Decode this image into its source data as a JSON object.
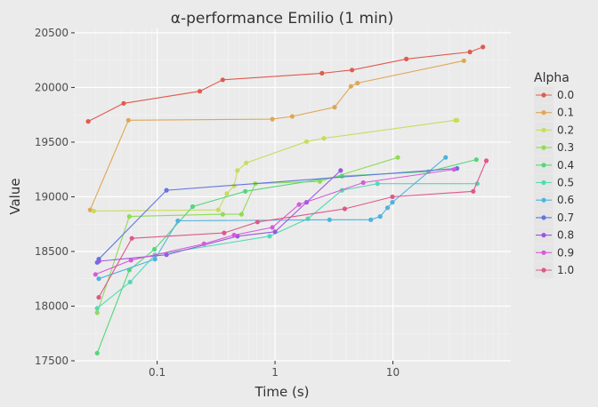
{
  "chart_data": {
    "type": "line",
    "title": "α-performance Emilio (1 min)",
    "xlabel": "Time (s)",
    "ylabel": "Value",
    "x_scale": "log",
    "xlim": [
      0.02,
      100
    ],
    "ylim": [
      17500,
      20540
    ],
    "x_ticks": [
      {
        "value": 0.1,
        "label": "0.1"
      },
      {
        "value": 1,
        "label": "1"
      },
      {
        "value": 10,
        "label": "10"
      }
    ],
    "y_ticks": [
      {
        "value": 17500,
        "label": "17500"
      },
      {
        "value": 18000,
        "label": "18000"
      },
      {
        "value": 18500,
        "label": "18500"
      },
      {
        "value": 19000,
        "label": "19000"
      },
      {
        "value": 19500,
        "label": "19500"
      },
      {
        "value": 20000,
        "label": "20000"
      },
      {
        "value": 20500,
        "label": "20500"
      }
    ],
    "grid": true,
    "legend": {
      "title": "Alpha",
      "position": "right"
    },
    "series": [
      {
        "name": "0.0",
        "color": "#e05a4e",
        "points": [
          [
            0.026,
            19690
          ],
          [
            0.052,
            19855
          ],
          [
            0.23,
            19965
          ],
          [
            0.36,
            20070
          ],
          [
            2.5,
            20130
          ],
          [
            4.5,
            20160
          ],
          [
            13,
            20260
          ],
          [
            45,
            20325
          ],
          [
            58,
            20370
          ]
        ]
      },
      {
        "name": "0.1",
        "color": "#dea755",
        "points": [
          [
            0.027,
            18880
          ],
          [
            0.057,
            19700
          ],
          [
            0.95,
            19710
          ],
          [
            1.4,
            19735
          ],
          [
            3.2,
            19820
          ],
          [
            4.4,
            20010
          ],
          [
            5.0,
            20040
          ],
          [
            40,
            20245
          ]
        ]
      },
      {
        "name": "0.2",
        "color": "#c8dc5c",
        "points": [
          [
            0.029,
            18870
          ],
          [
            0.33,
            18880
          ],
          [
            0.39,
            19030
          ],
          [
            0.45,
            19100
          ],
          [
            0.48,
            19240
          ],
          [
            0.57,
            19310
          ],
          [
            1.85,
            19505
          ],
          [
            2.6,
            19535
          ],
          [
            34,
            19700
          ],
          [
            35,
            19700
          ]
        ]
      },
      {
        "name": "0.3",
        "color": "#8fdc55",
        "points": [
          [
            0.031,
            17940
          ],
          [
            0.058,
            18820
          ],
          [
            0.36,
            18840
          ],
          [
            0.52,
            18840
          ],
          [
            0.68,
            19120
          ],
          [
            2.4,
            19140
          ],
          [
            11,
            19360
          ]
        ]
      },
      {
        "name": "0.4",
        "color": "#55d67a",
        "points": [
          [
            0.031,
            17570
          ],
          [
            0.058,
            18330
          ],
          [
            0.095,
            18520
          ],
          [
            0.2,
            18910
          ],
          [
            0.56,
            19050
          ],
          [
            3.7,
            19190
          ],
          [
            20,
            19230
          ],
          [
            51,
            19340
          ]
        ]
      },
      {
        "name": "0.5",
        "color": "#52d9b5",
        "points": [
          [
            0.031,
            17980
          ],
          [
            0.059,
            18220
          ],
          [
            0.096,
            18470
          ],
          [
            0.9,
            18640
          ],
          [
            1.9,
            18800
          ],
          [
            3.7,
            19060
          ],
          [
            7.4,
            19120
          ],
          [
            52,
            19120
          ]
        ]
      },
      {
        "name": "0.6",
        "color": "#4fb2dd",
        "points": [
          [
            0.032,
            18250
          ],
          [
            0.096,
            18430
          ],
          [
            0.15,
            18780
          ],
          [
            2.9,
            18790
          ],
          [
            6.5,
            18790
          ],
          [
            7.8,
            18820
          ],
          [
            9.0,
            18900
          ],
          [
            9.9,
            18950
          ],
          [
            28,
            19360
          ]
        ]
      },
      {
        "name": "0.7",
        "color": "#6275de",
        "points": [
          [
            0.031,
            18400
          ],
          [
            0.032,
            18430
          ],
          [
            0.12,
            19060
          ],
          [
            35,
            19260
          ]
        ]
      },
      {
        "name": "0.8",
        "color": "#9a58e0",
        "points": [
          [
            0.032,
            18410
          ],
          [
            0.12,
            18470
          ],
          [
            0.48,
            18640
          ],
          [
            1.0,
            18680
          ],
          [
            1.85,
            18950
          ],
          [
            3.6,
            19240
          ]
        ]
      },
      {
        "name": "0.9",
        "color": "#d85ad9",
        "points": [
          [
            0.03,
            18290
          ],
          [
            0.06,
            18420
          ],
          [
            0.25,
            18570
          ],
          [
            0.45,
            18650
          ],
          [
            0.95,
            18720
          ],
          [
            1.6,
            18930
          ],
          [
            5.6,
            19130
          ],
          [
            33,
            19250
          ]
        ]
      },
      {
        "name": "1.0",
        "color": "#e0578c",
        "points": [
          [
            0.032,
            18080
          ],
          [
            0.061,
            18620
          ],
          [
            0.37,
            18670
          ],
          [
            0.71,
            18770
          ],
          [
            3.9,
            18890
          ],
          [
            9.9,
            19000
          ],
          [
            48,
            19050
          ],
          [
            62,
            19330
          ]
        ]
      }
    ]
  }
}
